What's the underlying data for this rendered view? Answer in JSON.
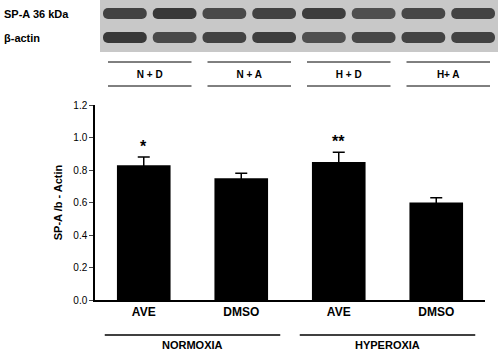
{
  "chart_data": {
    "type": "bar",
    "y_label": "SP-A /b - Actin",
    "categories": [
      "AVE",
      "DMSO",
      "AVE",
      "DMSO"
    ],
    "groups": [
      {
        "label": "NORMOXIA",
        "size": 2
      },
      {
        "label": "HYPEROXIA",
        "size": 2
      }
    ],
    "values": [
      0.83,
      0.75,
      0.85,
      0.6
    ],
    "errors": [
      0.05,
      0.03,
      0.06,
      0.03
    ],
    "color": "#000000",
    "ylim": [
      0,
      1.2
    ],
    "yticks": [
      {
        "value": 0,
        "label": "0.0"
      },
      0.2,
      0.4,
      0.6,
      0.8,
      {
        "value": 1,
        "label": "1.0"
      },
      1.2
    ],
    "grid": false,
    "annotations": [
      {
        "text": "*",
        "category": 0
      },
      {
        "text": "**",
        "category": 2
      }
    ]
  },
  "blot": {
    "bands": [
      "SP-A 36 kDa",
      "β-actin"
    ],
    "lanes": [
      "N + D",
      "N + A",
      "H + D",
      "H+ A"
    ]
  }
}
